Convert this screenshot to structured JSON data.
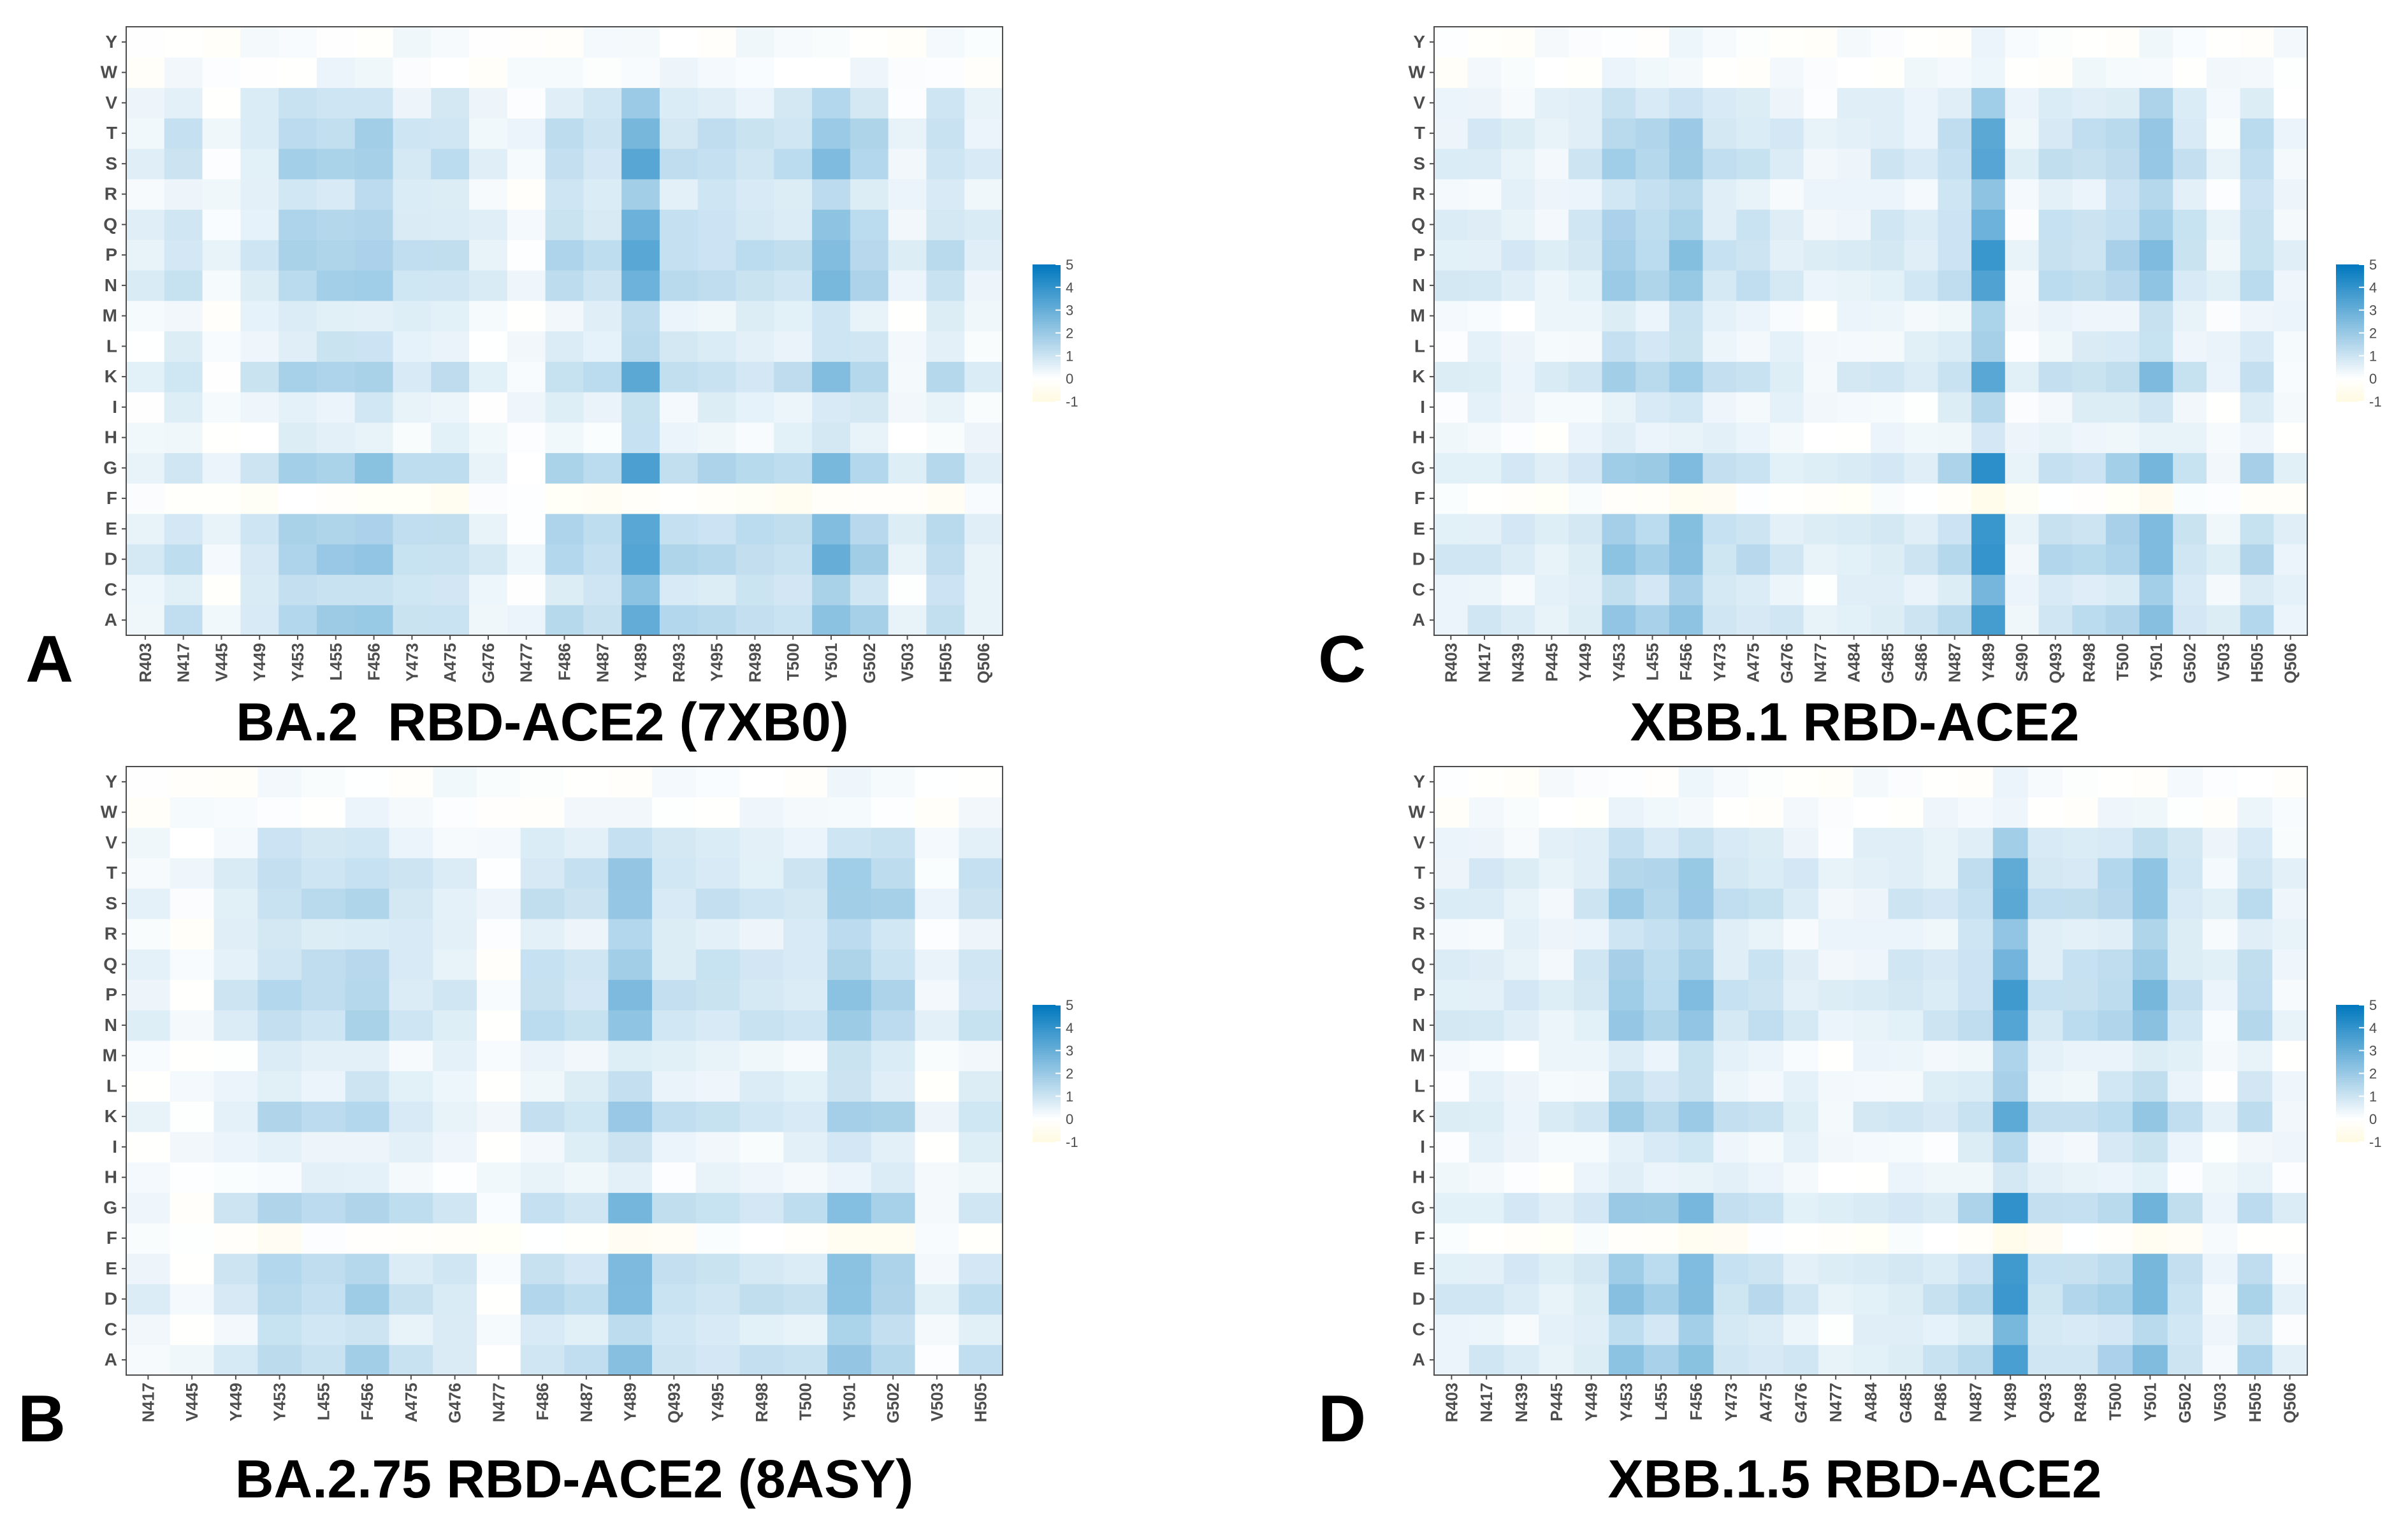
{
  "chart_data": [
    {
      "type": "heatmap",
      "panel_letter": "A",
      "title": "BA.2  RBD-ACE2 (7XB0)",
      "y_categories": [
        "A",
        "C",
        "D",
        "E",
        "F",
        "G",
        "H",
        "I",
        "K",
        "L",
        "M",
        "N",
        "P",
        "Q",
        "R",
        "S",
        "T",
        "V",
        "W",
        "Y"
      ],
      "x_categories": [
        "R403",
        "N417",
        "V445",
        "Y449",
        "Y453",
        "L455",
        "F456",
        "Y473",
        "A475",
        "G476",
        "N477",
        "F486",
        "N487",
        "Y489",
        "R493",
        "Y495",
        "R498",
        "T500",
        "Y501",
        "G502",
        "V503",
        "H505",
        "Q506"
      ],
      "column_base": [
        0.5,
        1,
        0.2,
        0.8,
        1.6,
        1.6,
        1.8,
        1,
        1.1,
        0.5,
        0.2,
        1.3,
        1.1,
        3.1,
        1.2,
        1.2,
        1.1,
        1.1,
        2.4,
        1.5,
        0.4,
        1.2,
        0.6
      ],
      "row_scale": [
        1.05,
        0.7,
        1.15,
        1.05,
        -0.15,
        1.15,
        0.3,
        0.4,
        1,
        0.5,
        0.4,
        1,
        1.05,
        0.85,
        0.6,
        1,
        0.9,
        0.6,
        0.1,
        0.05
      ],
      "legend": {
        "ticks": [
          "5",
          "4",
          "3",
          "2",
          "1",
          "0",
          "-1"
        ],
        "min": -1,
        "max": 5
      }
    },
    {
      "type": "heatmap",
      "panel_letter": "B",
      "title": "BA.2.75 RBD-ACE2 (8ASY)",
      "y_categories": [
        "A",
        "C",
        "D",
        "E",
        "F",
        "G",
        "H",
        "I",
        "K",
        "L",
        "M",
        "N",
        "P",
        "Q",
        "R",
        "S",
        "T",
        "V",
        "W",
        "Y"
      ],
      "x_categories": [
        "N417",
        "V445",
        "Y449",
        "Y453",
        "L455",
        "F456",
        "A475",
        "G476",
        "N477",
        "F486",
        "N487",
        "Y489",
        "Q493",
        "Y495",
        "R498",
        "T500",
        "Y501",
        "G502",
        "V503",
        "H505"
      ],
      "column_base": [
        0.4,
        0.1,
        0.7,
        1.3,
        1.2,
        1.5,
        0.9,
        0.7,
        0.1,
        1.1,
        1,
        2.2,
        1,
        1,
        0.9,
        0.9,
        2,
        1.5,
        0.3,
        1
      ],
      "row_scale": [
        1.05,
        0.7,
        1.15,
        1.05,
        -0.15,
        1.15,
        0.3,
        0.4,
        1,
        0.5,
        0.4,
        1,
        1.05,
        0.85,
        0.6,
        1,
        0.9,
        0.6,
        0.1,
        0.05
      ],
      "legend": {
        "ticks": [
          "5",
          "4",
          "3",
          "2",
          "1",
          "0",
          "-1"
        ],
        "min": -1,
        "max": 5
      }
    },
    {
      "type": "heatmap",
      "panel_letter": "C",
      "title": "XBB.1 RBD-ACE2",
      "y_categories": [
        "A",
        "C",
        "D",
        "E",
        "F",
        "G",
        "H",
        "I",
        "K",
        "L",
        "M",
        "N",
        "P",
        "Q",
        "R",
        "S",
        "T",
        "V",
        "W",
        "Y"
      ],
      "x_categories": [
        "R403",
        "N417",
        "N439",
        "P445",
        "Y449",
        "Y453",
        "L455",
        "F456",
        "Y473",
        "A475",
        "G476",
        "N477",
        "A484",
        "G485",
        "S486",
        "N487",
        "Y489",
        "S490",
        "Q493",
        "R498",
        "T500",
        "Y501",
        "G502",
        "V503",
        "H505",
        "Q506"
      ],
      "column_base": [
        0.6,
        0.7,
        0.6,
        0.5,
        0.8,
        1.8,
        1.5,
        2.1,
        1,
        1,
        0.7,
        0.4,
        0.6,
        0.8,
        0.7,
        1.2,
        3.5,
        0.4,
        1.1,
        1.1,
        1.4,
        2.3,
        1,
        0.4,
        1.3,
        0.4
      ],
      "row_scale": [
        1.05,
        0.7,
        1.15,
        1.05,
        -0.15,
        1.15,
        0.3,
        0.4,
        1,
        0.5,
        0.4,
        1,
        1.05,
        0.85,
        0.6,
        1,
        0.9,
        0.6,
        0.1,
        0.05
      ],
      "legend": {
        "ticks": [
          "5",
          "4",
          "3",
          "2",
          "1",
          "0",
          "-1"
        ],
        "min": -1,
        "max": 5
      }
    },
    {
      "type": "heatmap",
      "panel_letter": "D",
      "title": "XBB.1.5 RBD-ACE2",
      "y_categories": [
        "A",
        "C",
        "D",
        "E",
        "F",
        "G",
        "H",
        "I",
        "K",
        "L",
        "M",
        "N",
        "P",
        "Q",
        "R",
        "S",
        "T",
        "V",
        "W",
        "Y"
      ],
      "x_categories": [
        "R403",
        "N417",
        "N439",
        "P445",
        "Y449",
        "Y453",
        "L455",
        "F456",
        "Y473",
        "A475",
        "G476",
        "N477",
        "A484",
        "G485",
        "P486",
        "N487",
        "Y489",
        "Q493",
        "R498",
        "T500",
        "Y501",
        "G502",
        "V503",
        "H505",
        "Q506"
      ],
      "column_base": [
        0.6,
        0.7,
        0.6,
        0.5,
        0.8,
        1.9,
        1.5,
        2.2,
        1,
        1,
        0.7,
        0.4,
        0.6,
        0.8,
        0.8,
        1.2,
        3.4,
        1,
        1.1,
        1.4,
        2.3,
        1,
        0.4,
        1.3,
        0.4
      ],
      "row_scale": [
        1.05,
        0.7,
        1.15,
        1.05,
        -0.15,
        1.15,
        0.3,
        0.4,
        1,
        0.5,
        0.4,
        1,
        1.05,
        0.85,
        0.6,
        1,
        0.9,
        0.6,
        0.1,
        0.05
      ],
      "legend": {
        "ticks": [
          "5",
          "4",
          "3",
          "2",
          "1",
          "0",
          "-1"
        ],
        "min": -1,
        "max": 5
      }
    }
  ]
}
